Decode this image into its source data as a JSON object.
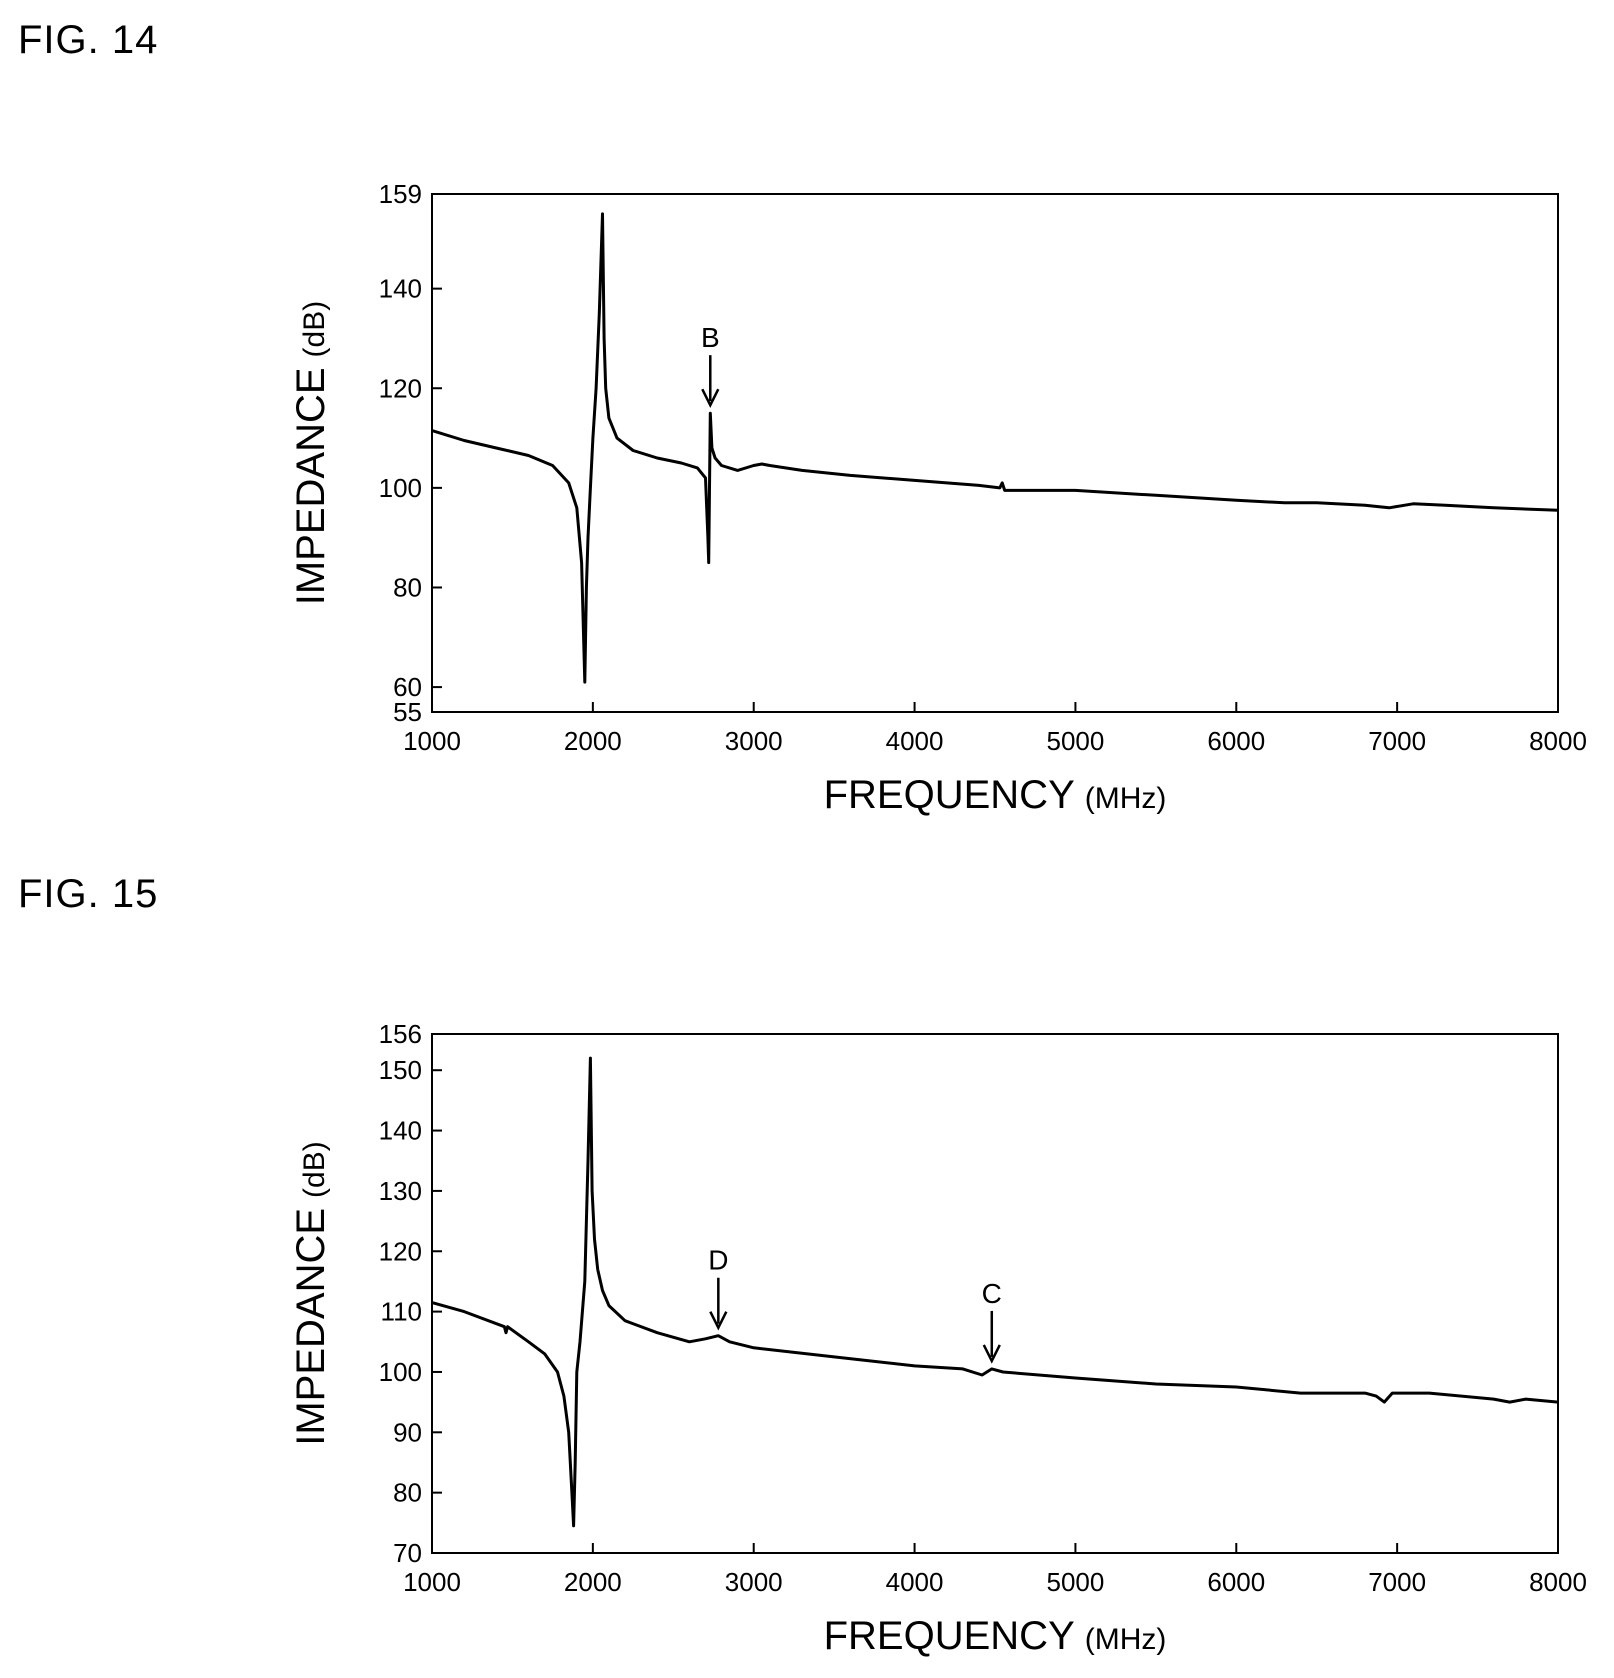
{
  "figures": [
    {
      "label": "FIG. 14"
    },
    {
      "label": "FIG. 15"
    }
  ],
  "chart_data": [
    {
      "type": "line",
      "xlabel": "FREQUENCY",
      "xunit": "(MHz)",
      "ylabel": "IMPEDANCE",
      "yunit": "(dB)",
      "xlim": [
        1000,
        8000
      ],
      "ylim": [
        55,
        159
      ],
      "xticks": [
        "1000",
        "2000",
        "3000",
        "4000",
        "5000",
        "6000",
        "7000",
        "8000"
      ],
      "yticks": [
        "55",
        "60",
        "80",
        "100",
        "120",
        "140",
        "159"
      ],
      "grid": false,
      "annotations": [
        {
          "text": "B",
          "x": 2730,
          "y": 115
        }
      ],
      "series": [
        {
          "x": [
            1000,
            1200,
            1400,
            1600,
            1750,
            1850,
            1900,
            1930,
            1950,
            1960,
            1970,
            1985,
            2000,
            2020,
            2040,
            2060,
            2070,
            2080,
            2100,
            2150,
            2250,
            2400,
            2550,
            2650,
            2700,
            2715,
            2720,
            2725,
            2730,
            2740,
            2760,
            2800,
            2900,
            3000,
            3050,
            3100,
            3300,
            3600,
            4000,
            4400,
            4530,
            4545,
            4560,
            4600,
            5000,
            5500,
            6000,
            6300,
            6500,
            6800,
            6950,
            7100,
            7300,
            7600,
            8000
          ],
          "values": [
            111.5,
            109.5,
            108,
            106.5,
            104.5,
            101,
            96,
            85,
            61,
            80,
            90,
            100,
            110,
            120,
            135,
            155,
            130,
            120,
            114,
            110,
            107.5,
            106,
            105,
            104,
            102,
            90,
            85,
            100,
            115,
            108,
            106,
            104.5,
            103.5,
            104.5,
            104.8,
            104.5,
            103.5,
            102.5,
            101.5,
            100.5,
            100,
            101,
            99.5,
            99.5,
            99.5,
            98.5,
            97.5,
            97,
            97,
            96.5,
            96,
            96.8,
            96.5,
            96,
            95.5
          ]
        }
      ]
    },
    {
      "type": "line",
      "xlabel": "FREQUENCY",
      "xunit": "(MHz)",
      "ylabel": "IMPEDANCE",
      "yunit": "(dB)",
      "xlim": [
        1000,
        8000
      ],
      "ylim": [
        70,
        156
      ],
      "xticks": [
        "1000",
        "2000",
        "3000",
        "4000",
        "5000",
        "6000",
        "7000",
        "8000"
      ],
      "yticks": [
        "70",
        "80",
        "90",
        "100",
        "110",
        "120",
        "130",
        "140",
        "150",
        "156"
      ],
      "grid": false,
      "annotations": [
        {
          "text": "D",
          "x": 2780,
          "y": 106
        },
        {
          "text": "C",
          "x": 4480,
          "y": 100.5
        }
      ],
      "series": [
        {
          "x": [
            1000,
            1200,
            1450,
            1460,
            1470,
            1600,
            1700,
            1780,
            1820,
            1850,
            1870,
            1880,
            1890,
            1900,
            1920,
            1950,
            1970,
            1985,
            1995,
            2010,
            2030,
            2060,
            2100,
            2200,
            2400,
            2600,
            2700,
            2780,
            2850,
            3000,
            3500,
            4000,
            4300,
            4420,
            4480,
            4550,
            5000,
            5500,
            6000,
            6400,
            6800,
            6870,
            6920,
            6970,
            7200,
            7600,
            7700,
            7800,
            8000
          ],
          "values": [
            111.5,
            110,
            107.5,
            106.5,
            107.5,
            105,
            103,
            100,
            96,
            90,
            80,
            74.5,
            85,
            100,
            105,
            115,
            135,
            152,
            130,
            122,
            117,
            113.5,
            111,
            108.5,
            106.5,
            105,
            105.5,
            106,
            105,
            104,
            102.5,
            101,
            100.5,
            99.5,
            100.5,
            100,
            99,
            98,
            97.5,
            96.5,
            96.5,
            96,
            95,
            96.5,
            96.5,
            95.5,
            95,
            95.5,
            95
          ]
        }
      ]
    }
  ]
}
